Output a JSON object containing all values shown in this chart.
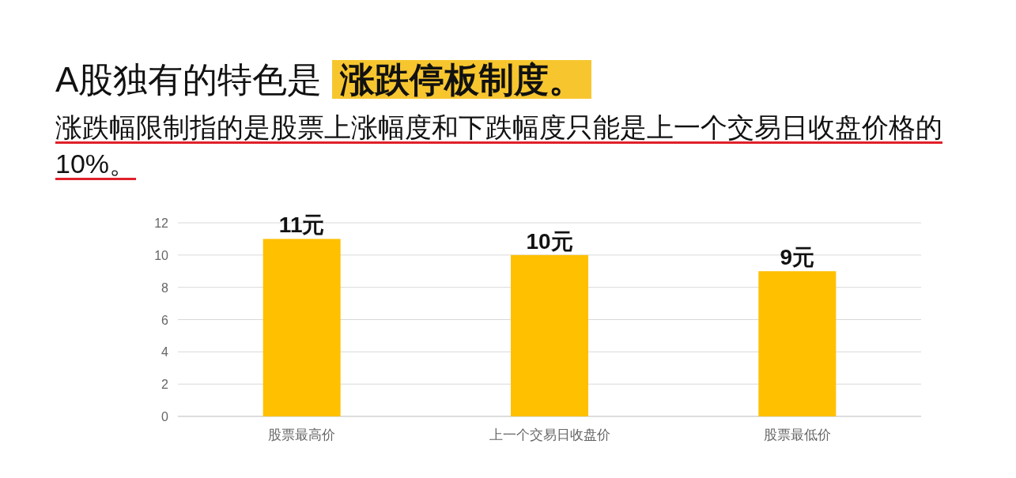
{
  "chart_data": {
    "type": "bar",
    "title": "A股独有的特色是 涨跌停板制度。",
    "subtitle": "涨跌幅限制指的是股票上涨幅度和下跌幅度只能是上一个交易日收盘价格的10%。",
    "categories": [
      "股票最高价",
      "上一个交易日收盘价",
      "股票最低价"
    ],
    "values": [
      11,
      10,
      9
    ],
    "value_labels": [
      "11元",
      "10元",
      "9元"
    ],
    "color": "#ffc000",
    "ylim": [
      0,
      12
    ],
    "yticks": [
      0,
      2,
      4,
      6,
      8,
      10,
      12
    ],
    "grid": "y"
  }
}
